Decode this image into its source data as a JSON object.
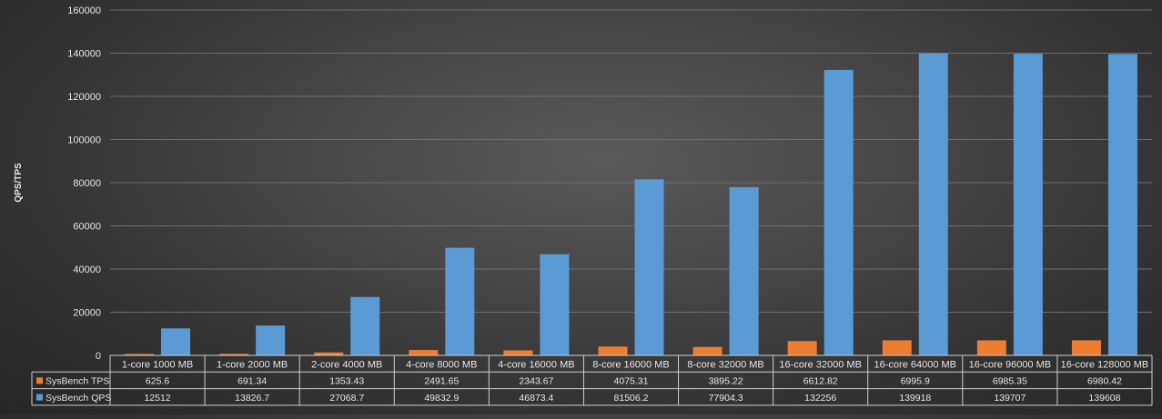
{
  "chart_data": {
    "type": "bar",
    "title": "",
    "xlabel": "",
    "ylabel": "QPS/TPS",
    "ylim": [
      0,
      160000
    ],
    "yticks": [
      "0",
      "20000",
      "40000",
      "60000",
      "80000",
      "100000",
      "120000",
      "140000",
      "160000"
    ],
    "grid": true,
    "legend_placement": "data-table-left",
    "categories": [
      "1-core 1000 MB",
      "1-core 2000 MB",
      "2-core 4000 MB",
      "4-core 8000 MB",
      "4-core 16000 MB",
      "8-core 16000 MB",
      "8-core 32000 MB",
      "16-core 32000 MB",
      "16-core 64000 MB",
      "16-core 96000 MB",
      "16-core 128000 MB"
    ],
    "series": [
      {
        "name": "SysBench TPS",
        "color": "#ed7d31",
        "values": [
          625.6,
          691.34,
          1353.43,
          2491.65,
          2343.67,
          4075.31,
          3895.22,
          6612.82,
          6995.9,
          6985.35,
          6980.42
        ],
        "labels": [
          "625.6",
          "691.34",
          "1353.43",
          "2491.65",
          "2343.67",
          "4075.31",
          "3895.22",
          "6612.82",
          "6995.9",
          "6985.35",
          "6980.42"
        ]
      },
      {
        "name": "SysBench QPS",
        "color": "#5b9bd5",
        "values": [
          12512,
          13826.7,
          27068.7,
          49832.9,
          46873.4,
          81506.2,
          77904.3,
          132256,
          139918,
          139707,
          139608
        ],
        "labels": [
          "12512",
          "13826.7",
          "27068.7",
          "49832.9",
          "46873.4",
          "81506.2",
          "77904.3",
          "132256",
          "139918",
          "139707",
          "139608"
        ]
      }
    ]
  }
}
